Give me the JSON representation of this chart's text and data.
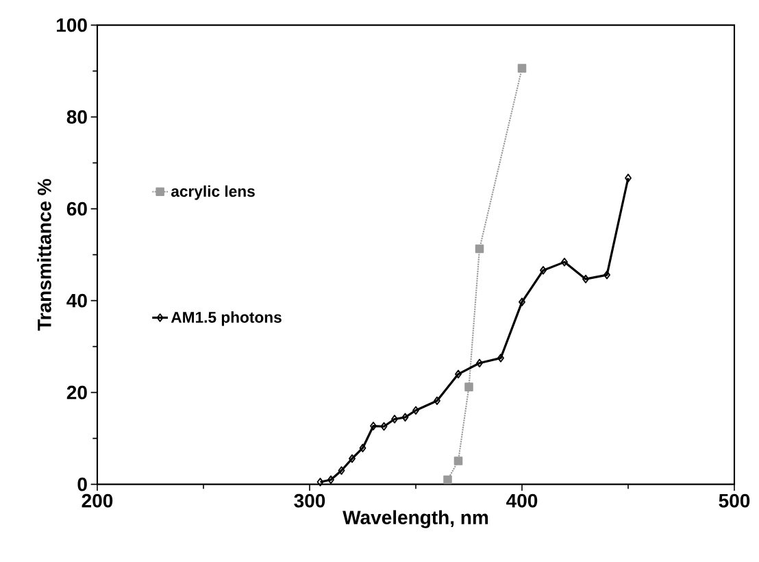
{
  "chart_data": {
    "type": "line",
    "xlabel": "Wavelength, nm",
    "ylabel": "Transmittance %",
    "xlim": [
      200,
      500
    ],
    "xticks": [
      200,
      300,
      400,
      500
    ],
    "ylim": [
      0,
      100
    ],
    "yticks": [
      0,
      20,
      40,
      60,
      80,
      100
    ],
    "grid": false,
    "legend": "left",
    "series": [
      {
        "name": "acrylic lens",
        "color": "#999999",
        "marker": "square",
        "line_style": "dotted",
        "x": [
          365,
          370,
          375,
          380,
          400
        ],
        "values": [
          1.0,
          5.1,
          21.2,
          51.3,
          90.6
        ]
      },
      {
        "name": "AM1.5 photons",
        "color": "#000000",
        "marker": "diamond",
        "line_style": "solid",
        "x": [
          305,
          310,
          315,
          320,
          325,
          330,
          335,
          340,
          345,
          350,
          360,
          370,
          380,
          390,
          400,
          410,
          420,
          430,
          440,
          450
        ],
        "values": [
          0.5,
          1.0,
          3.0,
          5.6,
          7.9,
          12.7,
          12.6,
          14.2,
          14.6,
          16.1,
          18.2,
          24.0,
          26.4,
          27.5,
          39.7,
          46.6,
          48.4,
          44.7,
          45.6,
          66.7
        ]
      }
    ]
  }
}
